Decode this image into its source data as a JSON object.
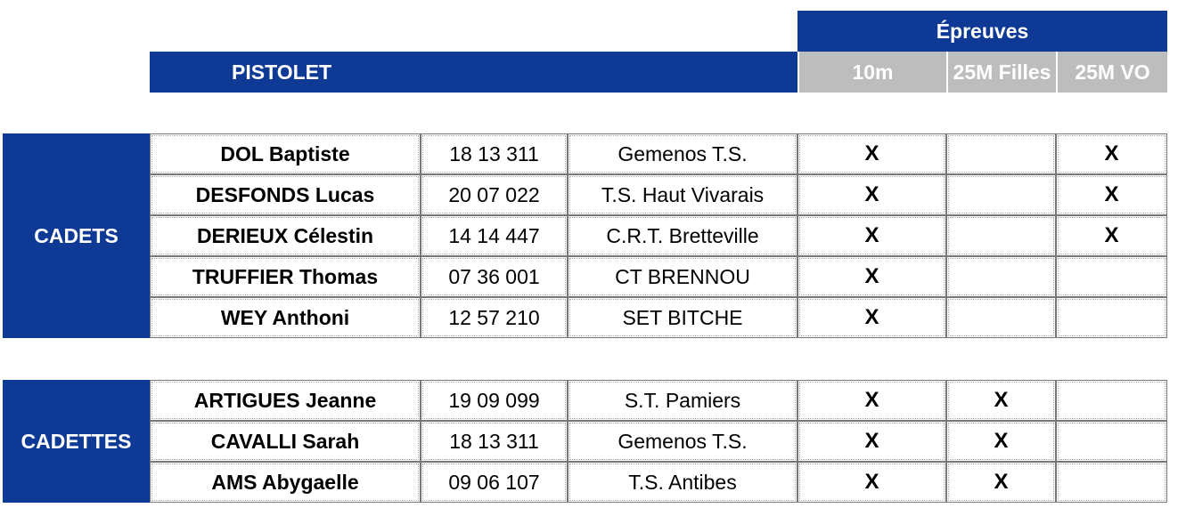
{
  "header": {
    "title": "Épreuves",
    "section": "PISTOLET",
    "events": [
      "10m",
      "25M Filles",
      "25M VO"
    ]
  },
  "groups": [
    {
      "label": "CADETS",
      "rows": [
        {
          "name": "DOL Baptiste",
          "license": "18 13 311",
          "club": "Gemenos T.S.",
          "marks": [
            "X",
            null,
            "X"
          ]
        },
        {
          "name": "DESFONDS Lucas",
          "license": "20 07 022",
          "club": "T.S. Haut Vivarais",
          "marks": [
            "X",
            null,
            "X"
          ]
        },
        {
          "name": "DERIEUX Célestin",
          "license": "14 14 447",
          "club": "C.R.T. Bretteville",
          "marks": [
            "X",
            null,
            "X"
          ]
        },
        {
          "name": "TRUFFIER Thomas",
          "license": "07 36 001",
          "club": "CT BRENNOU",
          "marks": [
            "X",
            null,
            null
          ]
        },
        {
          "name": "WEY Anthoni",
          "license": "12 57 210",
          "club": "SET BITCHE",
          "marks": [
            "X",
            null,
            null
          ]
        }
      ]
    },
    {
      "label": "CADETTES",
      "rows": [
        {
          "name": "ARTIGUES Jeanne",
          "license": "19 09 099",
          "club": "S.T. Pamiers",
          "marks": [
            "X",
            "X",
            null
          ]
        },
        {
          "name": "CAVALLI Sarah",
          "license": "18 13 311",
          "club": "Gemenos T.S.",
          "marks": [
            "X",
            "X",
            null
          ]
        },
        {
          "name": "AMS Abygaelle",
          "license": "09 06 107",
          "club": "T.S. Antibes",
          "marks": [
            "X",
            "X",
            null
          ]
        }
      ]
    }
  ]
}
